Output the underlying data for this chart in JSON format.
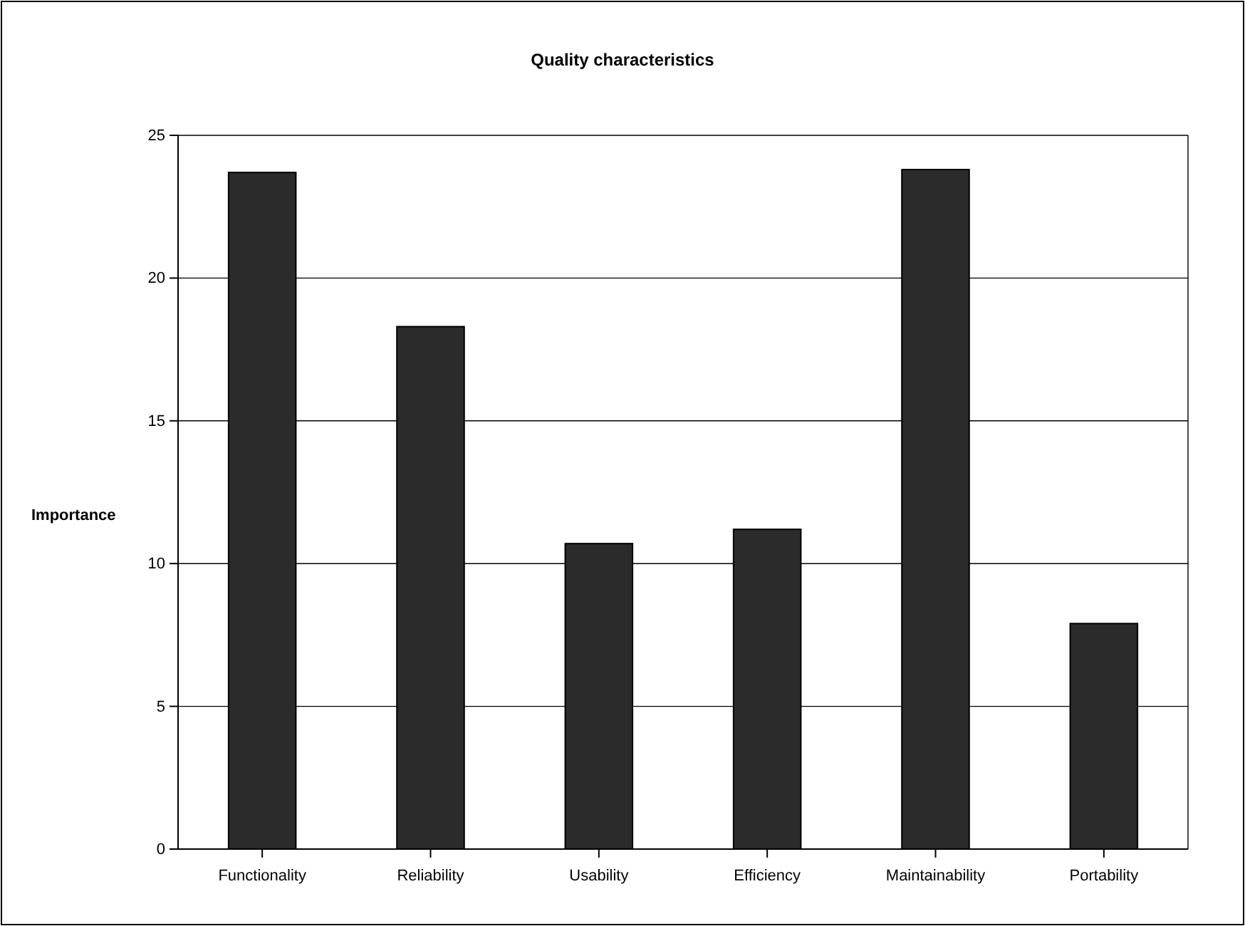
{
  "chart_data": {
    "type": "bar",
    "title": "Quality characteristics",
    "ylabel": "Importance",
    "categories": [
      "Functionality",
      "Reliability",
      "Usability",
      "Efficiency",
      "Maintainability",
      "Portability"
    ],
    "values": [
      23.7,
      18.3,
      10.7,
      11.2,
      23.8,
      7.9
    ],
    "color": "#2b2b2b",
    "ylim": [
      0,
      25
    ],
    "yticks": [
      0,
      5,
      10,
      15,
      20,
      25
    ],
    "grid": "y"
  }
}
